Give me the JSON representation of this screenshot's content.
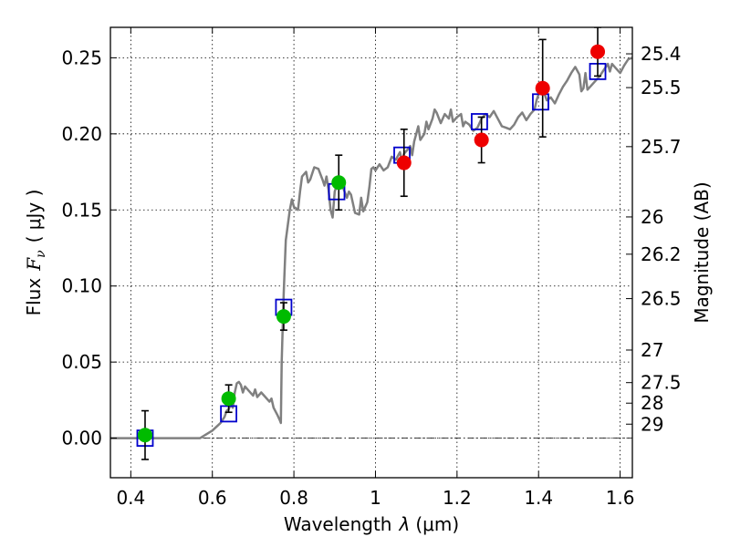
{
  "chart_data": {
    "type": "scatter",
    "x_label": {
      "text": "Wavelength",
      "symbol": "λ",
      "unit": "(μm)"
    },
    "y_label": {
      "text": "Flux",
      "symbol": "F",
      "subscript": "ν",
      "unit": "( μJy )"
    },
    "y2_label": "Magnitude (AB)",
    "xlim": [
      0.35,
      1.63
    ],
    "ylim": [
      -0.026,
      0.27
    ],
    "x_ticks": [
      {
        "value": 0.4,
        "label": "0.4"
      },
      {
        "value": 0.6,
        "label": "0.6"
      },
      {
        "value": 0.8,
        "label": "0.8"
      },
      {
        "value": 1.0,
        "label": "1"
      },
      {
        "value": 1.2,
        "label": "1.2"
      },
      {
        "value": 1.4,
        "label": "1.4"
      },
      {
        "value": 1.6,
        "label": "1.6"
      }
    ],
    "y_ticks": [
      {
        "value": 0.0,
        "label": "0.00"
      },
      {
        "value": 0.05,
        "label": "0.05"
      },
      {
        "value": 0.1,
        "label": "0.10"
      },
      {
        "value": 0.15,
        "label": "0.15"
      },
      {
        "value": 0.2,
        "label": "0.20"
      },
      {
        "value": 0.25,
        "label": "0.25"
      }
    ],
    "y2_ticks": [
      {
        "label": "25.4",
        "flux": 0.2526
      },
      {
        "label": "25.5",
        "flux": 0.2304
      },
      {
        "label": "25.7",
        "flux": 0.1916
      },
      {
        "label": "26",
        "flux": 0.1454
      },
      {
        "label": "26.2",
        "flux": 0.1209
      },
      {
        "label": "26.5",
        "flux": 0.0917
      },
      {
        "label": "27",
        "flux": 0.0579
      },
      {
        "label": "27.5",
        "flux": 0.0365
      },
      {
        "label": "28",
        "flux": 0.023
      },
      {
        "label": "29",
        "flux": 0.0092
      }
    ],
    "grid": true,
    "reference_line": {
      "y": 0.0,
      "style": "dash-dot"
    },
    "model_spectrum": {
      "color": "#808080",
      "points": [
        [
          0.35,
          0.0
        ],
        [
          0.57,
          0.0
        ],
        [
          0.6,
          0.005
        ],
        [
          0.62,
          0.01
        ],
        [
          0.63,
          0.014
        ],
        [
          0.635,
          0.018
        ],
        [
          0.64,
          0.019
        ],
        [
          0.645,
          0.022
        ],
        [
          0.65,
          0.02
        ],
        [
          0.655,
          0.03
        ],
        [
          0.66,
          0.036
        ],
        [
          0.665,
          0.037
        ],
        [
          0.67,
          0.035
        ],
        [
          0.675,
          0.03
        ],
        [
          0.68,
          0.034
        ],
        [
          0.69,
          0.031
        ],
        [
          0.7,
          0.028
        ],
        [
          0.705,
          0.032
        ],
        [
          0.71,
          0.027
        ],
        [
          0.72,
          0.03
        ],
        [
          0.73,
          0.027
        ],
        [
          0.74,
          0.024
        ],
        [
          0.745,
          0.026
        ],
        [
          0.75,
          0.02
        ],
        [
          0.76,
          0.015
        ],
        [
          0.765,
          0.012
        ],
        [
          0.768,
          0.01
        ],
        [
          0.77,
          0.05
        ],
        [
          0.775,
          0.095
        ],
        [
          0.78,
          0.13
        ],
        [
          0.79,
          0.15
        ],
        [
          0.795,
          0.157
        ],
        [
          0.8,
          0.152
        ],
        [
          0.81,
          0.15
        ],
        [
          0.815,
          0.162
        ],
        [
          0.82,
          0.172
        ],
        [
          0.83,
          0.175
        ],
        [
          0.835,
          0.168
        ],
        [
          0.84,
          0.17
        ],
        [
          0.85,
          0.178
        ],
        [
          0.86,
          0.177
        ],
        [
          0.87,
          0.17
        ],
        [
          0.875,
          0.166
        ],
        [
          0.88,
          0.172
        ],
        [
          0.885,
          0.163
        ],
        [
          0.89,
          0.15
        ],
        [
          0.895,
          0.145
        ],
        [
          0.9,
          0.162
        ],
        [
          0.91,
          0.17
        ],
        [
          0.92,
          0.165
        ],
        [
          0.93,
          0.158
        ],
        [
          0.935,
          0.162
        ],
        [
          0.94,
          0.16
        ],
        [
          0.95,
          0.148
        ],
        [
          0.96,
          0.147
        ],
        [
          0.965,
          0.158
        ],
        [
          0.97,
          0.149
        ],
        [
          0.98,
          0.155
        ],
        [
          0.985,
          0.165
        ],
        [
          0.99,
          0.177
        ],
        [
          0.995,
          0.178
        ],
        [
          1.0,
          0.176
        ],
        [
          1.01,
          0.18
        ],
        [
          1.02,
          0.176
        ],
        [
          1.03,
          0.178
        ],
        [
          1.04,
          0.185
        ],
        [
          1.05,
          0.183
        ],
        [
          1.06,
          0.188
        ],
        [
          1.065,
          0.182
        ],
        [
          1.07,
          0.187
        ],
        [
          1.08,
          0.19
        ],
        [
          1.085,
          0.192
        ],
        [
          1.09,
          0.186
        ],
        [
          1.095,
          0.195
        ],
        [
          1.1,
          0.2
        ],
        [
          1.105,
          0.205
        ],
        [
          1.11,
          0.196
        ],
        [
          1.12,
          0.2
        ],
        [
          1.125,
          0.208
        ],
        [
          1.13,
          0.203
        ],
        [
          1.14,
          0.21
        ],
        [
          1.145,
          0.216
        ],
        [
          1.15,
          0.214
        ],
        [
          1.16,
          0.207
        ],
        [
          1.17,
          0.213
        ],
        [
          1.18,
          0.21
        ],
        [
          1.185,
          0.216
        ],
        [
          1.19,
          0.208
        ],
        [
          1.2,
          0.211
        ],
        [
          1.21,
          0.213
        ],
        [
          1.215,
          0.205
        ],
        [
          1.22,
          0.208
        ],
        [
          1.23,
          0.206
        ],
        [
          1.24,
          0.202
        ],
        [
          1.25,
          0.204
        ],
        [
          1.26,
          0.21
        ],
        [
          1.27,
          0.213
        ],
        [
          1.28,
          0.211
        ],
        [
          1.29,
          0.215
        ],
        [
          1.3,
          0.21
        ],
        [
          1.31,
          0.205
        ],
        [
          1.32,
          0.204
        ],
        [
          1.33,
          0.203
        ],
        [
          1.34,
          0.206
        ],
        [
          1.35,
          0.211
        ],
        [
          1.36,
          0.214
        ],
        [
          1.37,
          0.209
        ],
        [
          1.38,
          0.213
        ],
        [
          1.39,
          0.216
        ],
        [
          1.395,
          0.222
        ],
        [
          1.4,
          0.226
        ],
        [
          1.405,
          0.232
        ],
        [
          1.41,
          0.23
        ],
        [
          1.42,
          0.222
        ],
        [
          1.43,
          0.224
        ],
        [
          1.44,
          0.22
        ],
        [
          1.45,
          0.226
        ],
        [
          1.46,
          0.231
        ],
        [
          1.47,
          0.235
        ],
        [
          1.48,
          0.24
        ],
        [
          1.49,
          0.244
        ],
        [
          1.5,
          0.239
        ],
        [
          1.505,
          0.228
        ],
        [
          1.51,
          0.23
        ],
        [
          1.515,
          0.24
        ],
        [
          1.52,
          0.229
        ],
        [
          1.53,
          0.232
        ],
        [
          1.54,
          0.235
        ],
        [
          1.55,
          0.238
        ],
        [
          1.56,
          0.242
        ],
        [
          1.57,
          0.246
        ],
        [
          1.575,
          0.241
        ],
        [
          1.58,
          0.246
        ],
        [
          1.59,
          0.243
        ],
        [
          1.6,
          0.24
        ],
        [
          1.61,
          0.245
        ],
        [
          1.62,
          0.249
        ],
        [
          1.63,
          0.25
        ]
      ]
    },
    "model_photometry": {
      "marker": "open-square",
      "color": "#0000cc",
      "points": [
        [
          0.435,
          0.0
        ],
        [
          0.64,
          0.016
        ],
        [
          0.775,
          0.086
        ],
        [
          0.905,
          0.162
        ],
        [
          1.065,
          0.186
        ],
        [
          1.255,
          0.208
        ],
        [
          1.405,
          0.221
        ],
        [
          1.545,
          0.241
        ]
      ]
    },
    "observed_detections": {
      "marker": "filled-circle",
      "color": "#00bb00",
      "points": [
        {
          "x": 0.435,
          "y": 0.002,
          "err": 0.016
        },
        {
          "x": 0.64,
          "y": 0.026,
          "err": 0.009
        },
        {
          "x": 0.775,
          "y": 0.08,
          "err": 0.009
        },
        {
          "x": 0.91,
          "y": 0.168,
          "err": 0.018
        }
      ]
    },
    "observed_other": {
      "marker": "filled-circle",
      "color": "#ee0000",
      "points": [
        {
          "x": 1.07,
          "y": 0.181,
          "err": 0.022
        },
        {
          "x": 1.26,
          "y": 0.196,
          "err": 0.015
        },
        {
          "x": 1.41,
          "y": 0.23,
          "err": 0.032
        },
        {
          "x": 1.545,
          "y": 0.254,
          "err": 0.016
        }
      ]
    }
  }
}
